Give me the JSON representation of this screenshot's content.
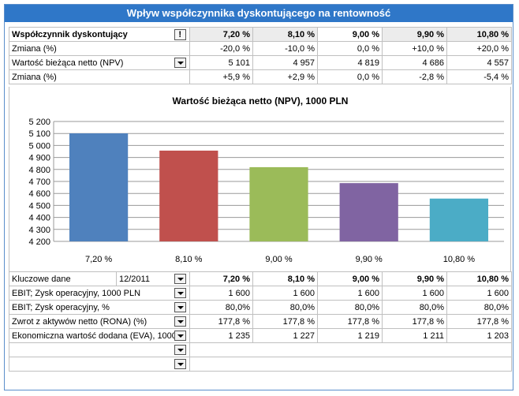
{
  "title": "Wpływ współczynnika dyskontującego na rentowność",
  "top_table": {
    "factor_label": "Współczynnik dyskontujący",
    "factor_button": "!",
    "factor_values": [
      "7,20 %",
      "8,10 %",
      "9,00 %",
      "9,90 %",
      "10,80 %"
    ],
    "change_label": "Zmiana (%)",
    "change_values": [
      "-20,0 %",
      "-10,0 %",
      "0,0 %",
      "+10,0 %",
      "+20,0 %"
    ],
    "npv_label": "Wartość bieżąca netto (NPV)",
    "npv_values": [
      "5 101",
      "4 957",
      "4 819",
      "4 686",
      "4 557"
    ],
    "npv_change_label": "Zmiana (%)",
    "npv_change_values": [
      "+5,9 %",
      "+2,9 %",
      "0,0 %",
      "-2,8 %",
      "-5,4 %"
    ]
  },
  "chart_data": {
    "type": "bar",
    "title": "Wartość bieżąca netto (NPV),  1000 PLN",
    "categories": [
      "7,20 %",
      "8,10 %",
      "9,00 %",
      "9,90 %",
      "10,80 %"
    ],
    "values": [
      5101,
      4957,
      4819,
      4686,
      4557
    ],
    "ylim": [
      4200,
      5200
    ],
    "yticks": [
      4200,
      4300,
      4400,
      4500,
      4600,
      4700,
      4800,
      4900,
      5000,
      5100,
      5200
    ],
    "ytick_labels": [
      "4 200",
      "4 300",
      "4 400",
      "4 500",
      "4 600",
      "4 700",
      "4 800",
      "4 900",
      "5 000",
      "5 100",
      "5 200"
    ],
    "colors": [
      "#4f81bd",
      "#c0504d",
      "#9bbb59",
      "#8064a2",
      "#4bacc6"
    ],
    "grid": true,
    "xlabel": "",
    "ylabel": ""
  },
  "bottom_table": {
    "key_label": "Kluczowe dane",
    "key_period": "12/2011",
    "header_values": [
      "7,20 %",
      "8,10 %",
      "9,00 %",
      "9,90 %",
      "10,80 %"
    ],
    "rows": [
      {
        "label": "EBIT; Zysk operacyjny, 1000 PLN",
        "values": [
          "1 600",
          "1 600",
          "1 600",
          "1 600",
          "1 600"
        ]
      },
      {
        "label": "EBIT; Zysk operacyjny, %",
        "values": [
          "80,0%",
          "80,0%",
          "80,0%",
          "80,0%",
          "80,0%"
        ]
      },
      {
        "label": "Zwrot z aktywów netto (RONA) (%)",
        "values": [
          "177,8 %",
          "177,8 %",
          "177,8 %",
          "177,8 %",
          "177,8 %"
        ]
      },
      {
        "label": "Ekonomiczna wartość dodana (EVA), 1000",
        "values": [
          "1 235",
          "1 227",
          "1 219",
          "1 211",
          "1 203"
        ]
      },
      {
        "label": "",
        "values": []
      },
      {
        "label": "",
        "values": []
      }
    ]
  },
  "colors": {
    "title_bg": "#2f77c8",
    "title_fg": "#ffffff",
    "border": "#5b8fcb",
    "shade": "#ececec"
  }
}
